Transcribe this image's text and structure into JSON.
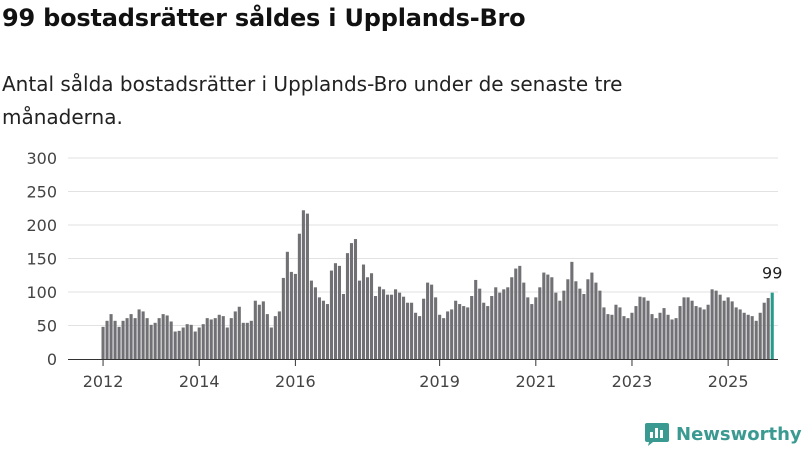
{
  "header": {
    "title": "99 bostadsrätter såldes i Upplands-Bro",
    "subtitle": "Antal sålda bostadsrätter i Upplands-Bro under de senaste tre månaderna."
  },
  "brand": {
    "name": "Newsworthy",
    "color": "#3a9a92"
  },
  "chart_data": {
    "type": "bar",
    "title": "99 bostadsrätter såldes i Upplands-Bro",
    "ylim": [
      0,
      300
    ],
    "yticks": [
      0,
      50,
      100,
      150,
      200,
      250,
      300
    ],
    "x_tick_labels": [
      "2012",
      "2014",
      "2016",
      "2019",
      "2021",
      "2023",
      "2025"
    ],
    "x_tick_bar_index": [
      0,
      24,
      48,
      84,
      108,
      132,
      156
    ],
    "start_label": "2012",
    "bar_color": "#717175",
    "highlight_color": "#2a9a8c",
    "last_value_label": "99",
    "values": [
      48,
      57,
      67,
      57,
      48,
      57,
      61,
      67,
      61,
      74,
      71,
      61,
      51,
      54,
      61,
      67,
      65,
      56,
      41,
      42,
      47,
      52,
      51,
      41,
      47,
      52,
      61,
      59,
      61,
      66,
      64,
      47,
      61,
      71,
      78,
      54,
      54,
      57,
      87,
      81,
      86,
      67,
      47,
      64,
      71,
      121,
      160,
      130,
      127,
      187,
      222,
      217,
      117,
      107,
      92,
      87,
      82,
      132,
      143,
      139,
      97,
      158,
      173,
      179,
      117,
      141,
      122,
      128,
      94,
      108,
      104,
      96,
      96,
      104,
      99,
      93,
      84,
      84,
      69,
      64,
      90,
      114,
      111,
      92,
      66,
      61,
      71,
      74,
      87,
      82,
      79,
      77,
      94,
      118,
      105,
      84,
      79,
      94,
      107,
      99,
      104,
      107,
      122,
      135,
      139,
      114,
      92,
      82,
      92,
      107,
      129,
      126,
      122,
      99,
      87,
      102,
      119,
      145,
      116,
      105,
      97,
      119,
      129,
      114,
      102,
      77,
      67,
      66,
      81,
      77,
      64,
      61,
      69,
      79,
      93,
      92,
      87,
      67,
      61,
      69,
      76,
      66,
      59,
      61,
      79,
      92,
      92,
      87,
      79,
      77,
      74,
      81,
      104,
      102,
      96,
      87,
      92,
      86,
      77,
      74,
      69,
      66,
      64,
      57,
      69,
      84,
      91,
      99
    ]
  }
}
